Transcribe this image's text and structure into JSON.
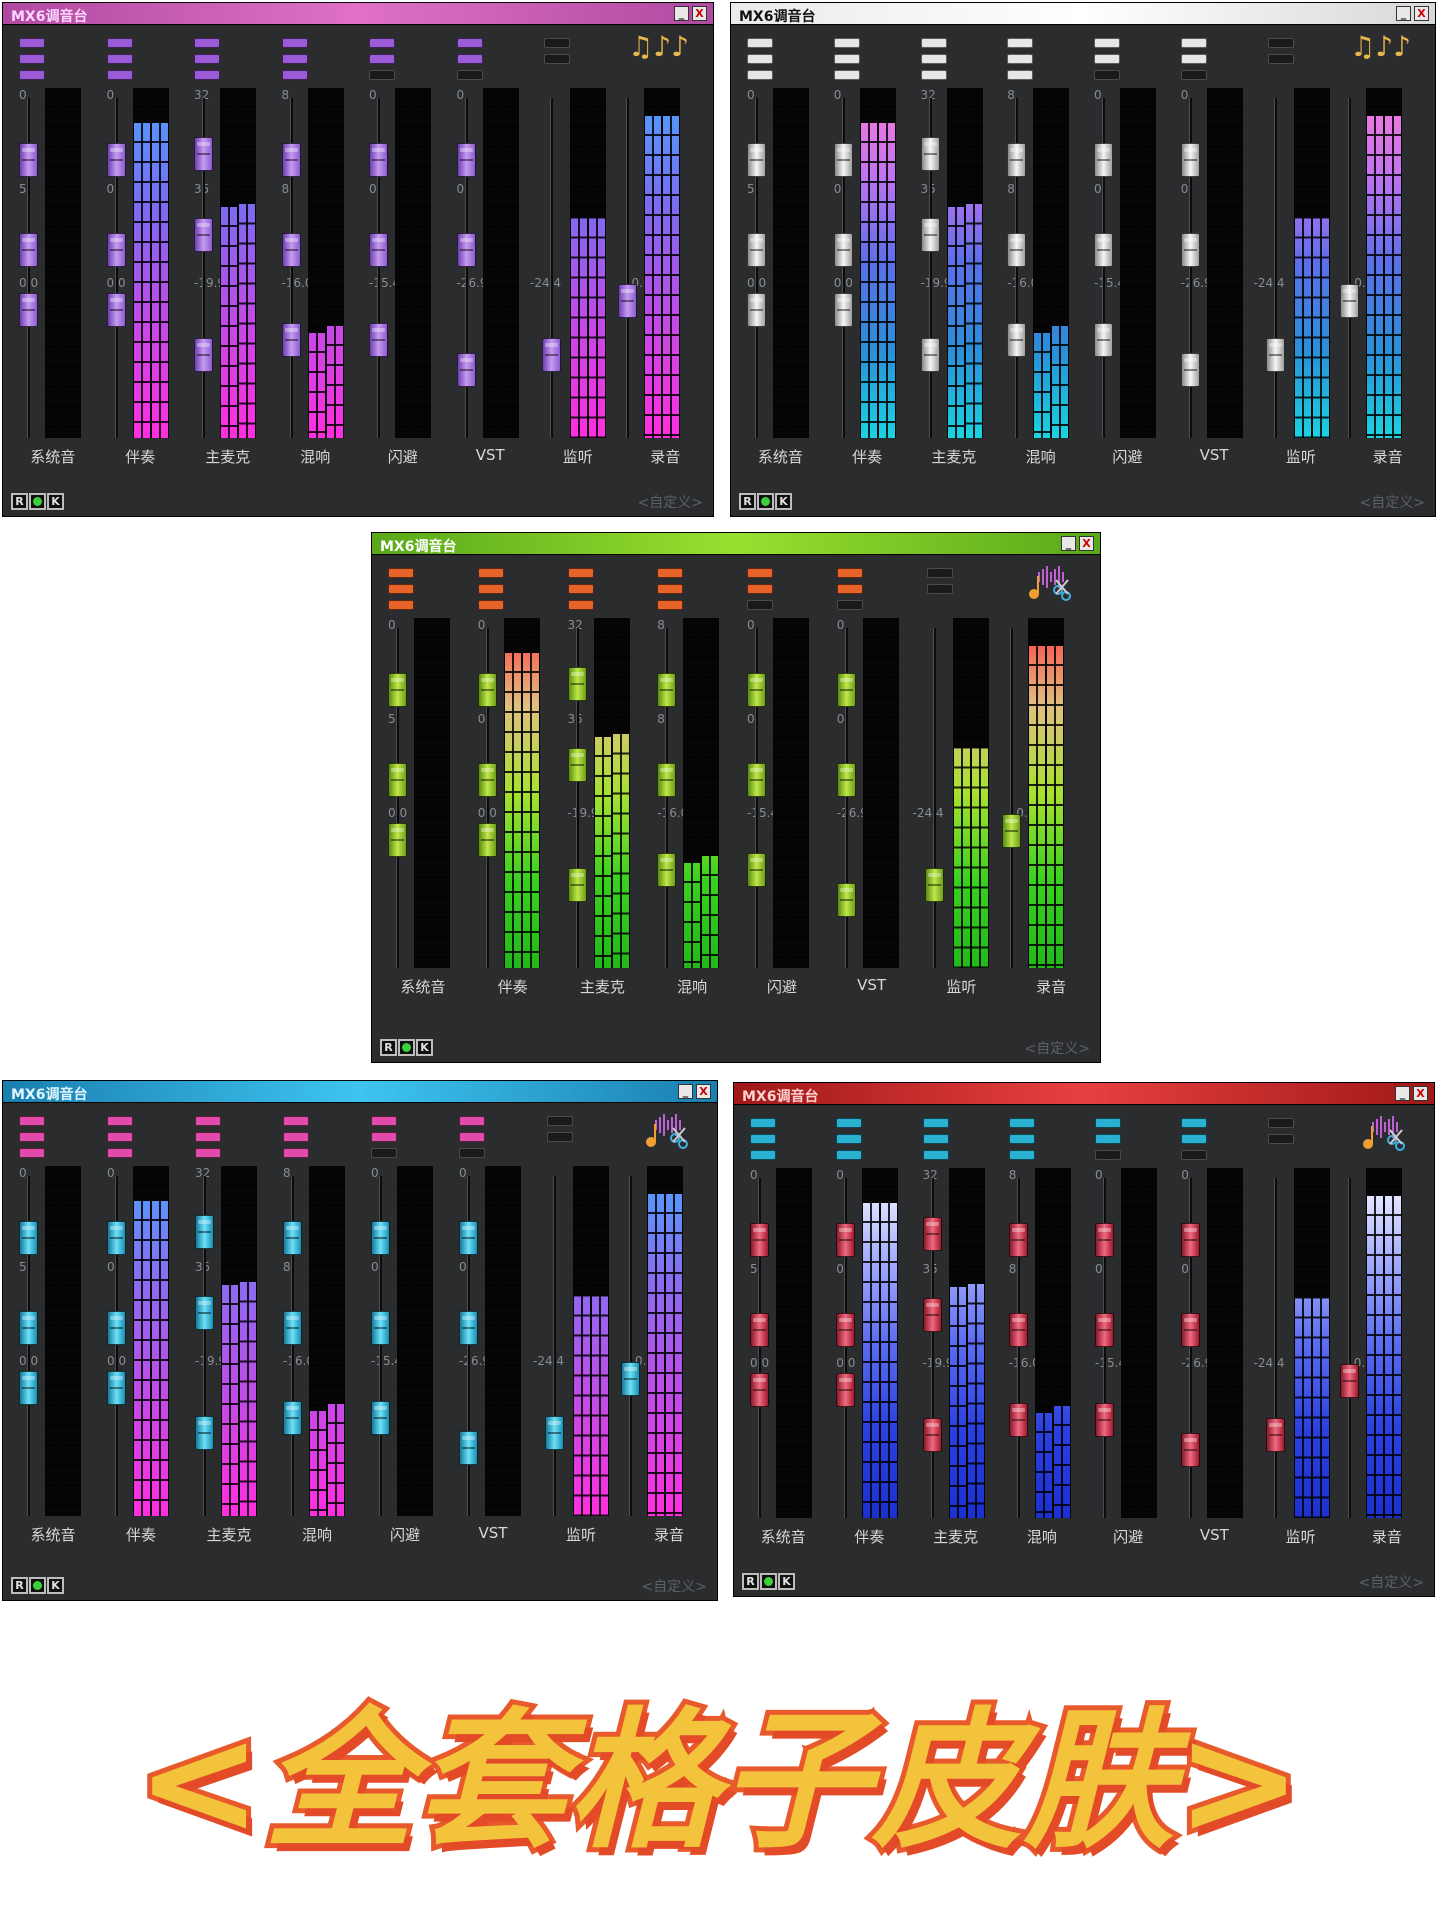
{
  "windows": [
    {
      "title": "MX6调音台",
      "title_color": "#ffd6ff",
      "titlebar": "linear-gradient(to right,#b04aa0,#e070c8,#b04aa0)",
      "indicator_color": "#9b5ad6",
      "knob_color": "linear-gradient(to right,#6e3fb0,#c59cf0,#8d5bd0)",
      "meter": "linear-gradient(to bottom,#4aa3ff,#7a6cf0,#c24ae6,#ff2ee0)",
      "meter_top": "#4aa3ff",
      "icon": "music-notes-icon",
      "icon_text": "♫♪♪"
    },
    {
      "title": "MX6调音台",
      "title_color": "#111111",
      "titlebar": "linear-gradient(to right,#eaeaea,#ffffff,#d8d8d8)",
      "indicator_color": "#e6e6e6",
      "knob_color": "linear-gradient(to right,#8a8a8a,#f5f5f5,#a0a0a0)",
      "meter": "linear-gradient(to bottom,#ff7ad8,#c073f0,#5a6fe8,#2a8fd8,#1ad3e0)",
      "meter_top": "#ff7ad8",
      "icon": "music-notes-icon",
      "icon_text": "♫♪♪"
    },
    {
      "title": "MX6调音台",
      "title_color": "#ffffff",
      "titlebar": "linear-gradient(to right,#5aa81a,#98e030,#5aa81a)",
      "indicator_color": "#e8632a",
      "knob_color": "linear-gradient(to right,#5a8a12,#bfe84a,#6f9e1a)",
      "meter": "linear-gradient(to bottom,#ff3a40,#e0c080,#a8e030,#3ad020,#22b81a)",
      "meter_top": "#ff3a40",
      "icon": "audio-edit-icon",
      "icon_text": ""
    },
    {
      "title": "MX6调音台",
      "title_color": "#e0f6ff",
      "titlebar": "linear-gradient(to right,#1a7fb0,#3ec4f0,#1a7fb0)",
      "indicator_color": "#e04aa8",
      "knob_color": "linear-gradient(to right,#167a9a,#6ee0f8,#1a8fb0)",
      "meter": "linear-gradient(to bottom,#4aa3ff,#8a6cf0,#c24ae6,#ff2ee0)",
      "meter_top": "#4aa3ff",
      "icon": "audio-edit-icon",
      "icon_text": ""
    },
    {
      "title": "MX6调音台",
      "title_color": "#ffd0d0",
      "titlebar": "linear-gradient(to right,#a01818,#e84040,#a01818)",
      "indicator_color": "#2ab0d0",
      "knob_color": "linear-gradient(to right,#8a1a2a,#f06a80,#a01a30)",
      "meter": "linear-gradient(to bottom,#ffffff,#a8b0ff,#5a6cf0,#2a40e0,#1a30d0)",
      "meter_top": "#ffffff",
      "icon": "audio-edit-icon",
      "icon_text": ""
    }
  ],
  "channels": [
    {
      "label": "系统音",
      "scale": [
        "0",
        "5",
        "0.0"
      ],
      "indicators": [
        1,
        1,
        1
      ],
      "meter": [
        0.0,
        0.0
      ]
    },
    {
      "label": "伴奏",
      "scale": [
        "0",
        "0",
        "0.0"
      ],
      "indicators": [
        1,
        1,
        1
      ],
      "meter": [
        0.9,
        0.9
      ]
    },
    {
      "label": "主麦克",
      "scale": [
        "32",
        "35",
        "-19.9"
      ],
      "indicators": [
        1,
        1,
        1
      ],
      "meter": [
        0.66,
        0.67
      ]
    },
    {
      "label": "混响",
      "scale": [
        "8",
        "8",
        "-16.0"
      ],
      "indicators": [
        1,
        1,
        1
      ],
      "meter": [
        0.3,
        0.32
      ]
    },
    {
      "label": "闪避",
      "scale": [
        "0",
        "0",
        "-15.4"
      ],
      "indicators": [
        1,
        1,
        0
      ],
      "meter": [
        0.0,
        0.0
      ]
    },
    {
      "label": "VST",
      "scale": [
        "0",
        "0",
        "-26.9"
      ],
      "indicators": [
        1,
        1,
        0
      ],
      "meter": [
        0.0,
        0.0
      ]
    },
    {
      "label": "监听",
      "scale": [
        "",
        "",
        "-24.4"
      ],
      "indicators": [
        0,
        0
      ],
      "meter": [
        0.63,
        0.63
      ]
    },
    {
      "label": "录音",
      "scale": [
        "",
        "",
        "0.0"
      ],
      "indicators": [],
      "meter": [
        0.92,
        0.92
      ]
    }
  ],
  "knob_levels": [
    [
      0.85,
      0.55,
      0.35
    ],
    [
      0.85,
      0.55,
      0.35
    ],
    [
      0.87,
      0.6,
      0.2
    ],
    [
      0.85,
      0.55,
      0.25
    ],
    [
      0.85,
      0.55,
      0.25
    ],
    [
      0.85,
      0.55,
      0.15
    ],
    [
      0.2
    ],
    [
      0.38
    ]
  ],
  "footer": {
    "r": "R",
    "k": "K",
    "custom": "<自定义>"
  },
  "window_buttons": {
    "minimize": "_",
    "close": "X"
  },
  "banner": "<全套格子皮肤>"
}
